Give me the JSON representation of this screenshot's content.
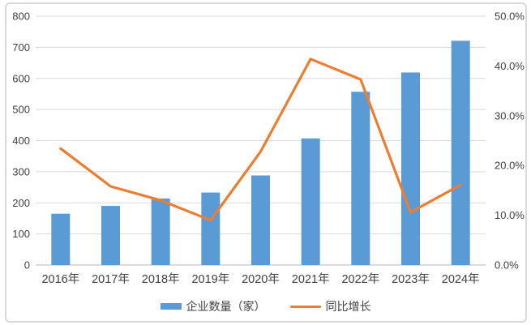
{
  "figure": {
    "background": "#ffffff",
    "border_color": "#d9d9d9"
  },
  "colors": {
    "bar": "#5B9BD5",
    "line": "#ED7D31",
    "gridline": "#D9D9D9",
    "axis_line": "#C6C6C6",
    "text": "#404040"
  },
  "legend": {
    "items": [
      {
        "label": "企业数量（家）",
        "swatch": "bar",
        "color": "#5B9BD5"
      },
      {
        "label": "同比增长",
        "swatch": "line",
        "color": "#ED7D31"
      }
    ]
  },
  "chart_data": {
    "type": "combo",
    "categories": [
      "2016年",
      "2017年",
      "2018年",
      "2019年",
      "2020年",
      "2021年",
      "2022年",
      "2023年",
      "2024年"
    ],
    "series": [
      {
        "name": "企业数量（家）",
        "type": "bar",
        "axis": "left",
        "color": "#5B9BD5",
        "values": [
          165,
          190,
          214,
          233,
          288,
          407,
          557,
          619,
          721
        ]
      },
      {
        "name": "同比增长",
        "type": "line",
        "axis": "right",
        "color": "#ED7D31",
        "unit": "%",
        "values": [
          23.4,
          15.8,
          13.0,
          9.0,
          22.8,
          41.4,
          37.3,
          10.6,
          16.1
        ]
      }
    ],
    "left_axis": {
      "min": 0,
      "max": 800,
      "step": 100,
      "labels": [
        "800",
        "700",
        "600",
        "500",
        "400",
        "300",
        "200",
        "100",
        "0"
      ]
    },
    "right_axis": {
      "min": 0,
      "max": 50,
      "step": 10,
      "labels": [
        "50.0%",
        "40.0%",
        "30.0%",
        "20.0%",
        "10.0%",
        "0.0%"
      ]
    },
    "title": "",
    "xlabel": "",
    "ylabel": "",
    "grid": true,
    "legend_position": "bottom"
  }
}
